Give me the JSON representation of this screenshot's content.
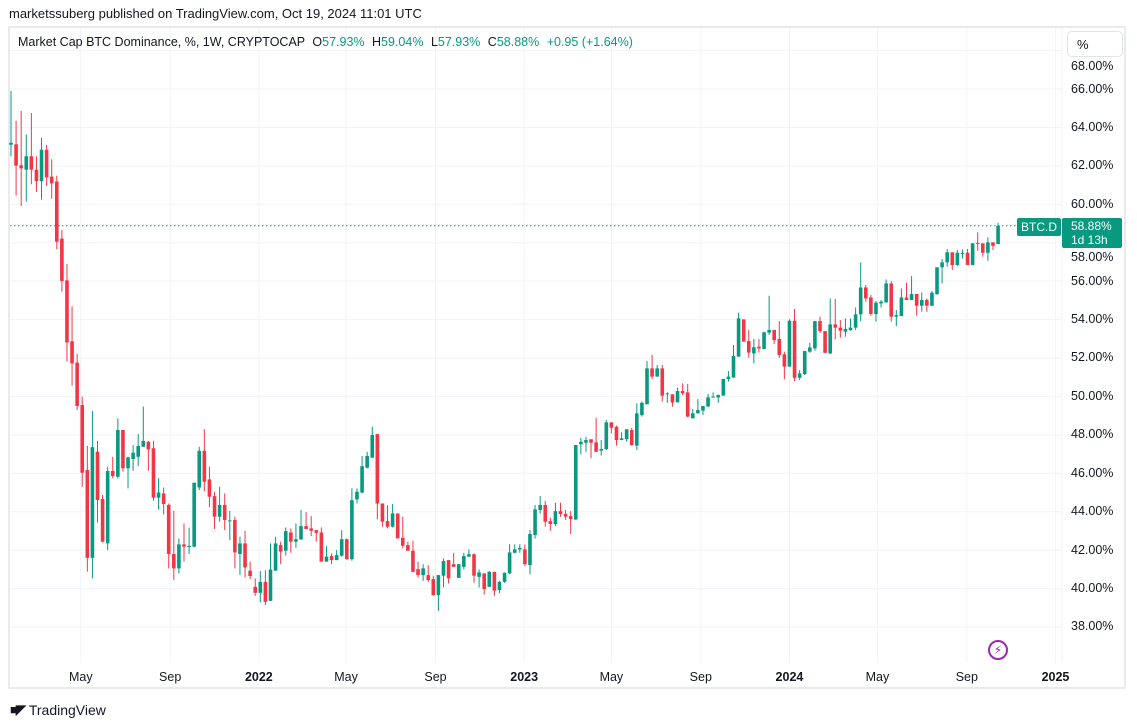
{
  "publisher": "marketssuberg published on TradingView.com, Oct 19, 2024 11:01 UTC",
  "legend": {
    "title": "Market Cap BTC Dominance, %, 1W, CRYPTOCAP",
    "o_key": "O",
    "o": "57.93%",
    "h_key": "H",
    "h": "59.04%",
    "l_key": "L",
    "l": "57.93%",
    "c_key": "C",
    "c": "58.88%",
    "change": "+0.95 (+1.64%)"
  },
  "scale_button": "%",
  "price_label": {
    "symbol": "BTC.D",
    "value": "58.88%",
    "countdown": "1d 13h"
  },
  "footer": {
    "logo_text": "TradingView",
    "logo_mark": "17"
  },
  "colors": {
    "up": "#089981",
    "down": "#f23645",
    "grid": "#f0f3fa",
    "alert_icon": "#9c27b0"
  },
  "icons": {
    "alert": "lightning-icon"
  },
  "chart_data": {
    "type": "candlestick",
    "interval": "1W",
    "first_week": "2021-01-25",
    "ylim": [
      36.9,
      67.5
    ],
    "y_ticks": [
      "68.00%",
      "66.00%",
      "64.00%",
      "62.00%",
      "60.00%",
      "58.00%",
      "56.00%",
      "54.00%",
      "52.00%",
      "50.00%",
      "48.00%",
      "46.00%",
      "44.00%",
      "42.00%",
      "40.00%",
      "38.00%"
    ],
    "y_tick_values": [
      68,
      66,
      64,
      62,
      60,
      58,
      56,
      54,
      52,
      50,
      48,
      46,
      44,
      42,
      40,
      38
    ],
    "x_ticks": [
      {
        "label": "May",
        "date": "2021-05-01",
        "year": false
      },
      {
        "label": "Sep",
        "date": "2021-09-01",
        "year": false
      },
      {
        "label": "2022",
        "date": "2022-01-01",
        "year": true
      },
      {
        "label": "May",
        "date": "2022-05-01",
        "year": false
      },
      {
        "label": "Sep",
        "date": "2022-09-01",
        "year": false
      },
      {
        "label": "2023",
        "date": "2023-01-01",
        "year": true
      },
      {
        "label": "May",
        "date": "2023-05-01",
        "year": false
      },
      {
        "label": "Sep",
        "date": "2023-09-01",
        "year": false
      },
      {
        "label": "2024",
        "date": "2024-01-01",
        "year": true
      },
      {
        "label": "May",
        "date": "2024-05-01",
        "year": false
      },
      {
        "label": "Sep",
        "date": "2024-09-01",
        "year": false
      },
      {
        "label": "2025",
        "date": "2025-01-01",
        "year": true
      }
    ],
    "last_price": 58.88,
    "grid": true,
    "ohlc": [
      [
        63.1,
        65.9,
        62.5,
        63.2
      ],
      [
        63.12,
        64.35,
        60.45,
        62.01
      ],
      [
        62.03,
        64.86,
        59.91,
        61.87
      ],
      [
        61.8,
        63.64,
        60.14,
        62.5
      ],
      [
        62.5,
        64.75,
        61.04,
        61.8
      ],
      [
        61.8,
        62.5,
        60.64,
        61.2
      ],
      [
        61.2,
        63.45,
        60.24,
        62.84
      ],
      [
        62.84,
        63.09,
        60.95,
        61.4
      ],
      [
        61.44,
        62.34,
        60.29,
        61.09
      ],
      [
        61.18,
        61.49,
        57.67,
        58.05
      ],
      [
        58.21,
        58.66,
        55.45,
        56.01
      ],
      [
        56.04,
        56.89,
        51.81,
        52.81
      ],
      [
        52.87,
        54.69,
        50.56,
        51.72
      ],
      [
        51.76,
        52.21,
        49.29,
        49.5
      ],
      [
        49.55,
        49.99,
        45.3,
        46.03
      ],
      [
        46.17,
        47.43,
        40.88,
        41.6
      ],
      [
        41.6,
        49.24,
        40.53,
        47.36
      ],
      [
        47.12,
        47.69,
        43.44,
        44.61
      ],
      [
        44.66,
        44.87,
        42.4,
        42.44
      ],
      [
        42.35,
        46.34,
        42.0,
        46.12
      ],
      [
        46.12,
        46.86,
        45.73,
        45.86
      ],
      [
        45.82,
        48.86,
        45.73,
        48.25
      ],
      [
        48.25,
        48.25,
        46.08,
        46.26
      ],
      [
        46.26,
        46.86,
        45.21,
        46.83
      ],
      [
        46.74,
        47.47,
        46.13,
        47.07
      ],
      [
        46.86,
        48.04,
        46.38,
        47.42
      ],
      [
        47.38,
        49.47,
        47.38,
        47.68
      ],
      [
        47.64,
        47.69,
        46.13,
        47.24
      ],
      [
        47.3,
        47.69,
        44.57,
        44.73
      ],
      [
        44.73,
        45.74,
        44.12,
        45.0
      ],
      [
        44.95,
        45.26,
        43.86,
        44.4
      ],
      [
        44.35,
        44.43,
        41.05,
        41.8
      ],
      [
        41.8,
        44.05,
        40.44,
        41.05
      ],
      [
        41.05,
        42.61,
        40.79,
        42.3
      ],
      [
        42.3,
        43.39,
        41.4,
        42.18
      ],
      [
        42.2,
        43.17,
        41.8,
        42.22
      ],
      [
        42.18,
        45.51,
        42.14,
        45.51
      ],
      [
        45.26,
        47.38,
        45.13,
        47.17
      ],
      [
        47.17,
        48.3,
        45.07,
        45.56
      ],
      [
        45.68,
        46.34,
        44.23,
        44.78
      ],
      [
        44.81,
        45.04,
        43.1,
        43.74
      ],
      [
        43.74,
        45.3,
        43.48,
        44.35
      ],
      [
        44.35,
        44.95,
        43.04,
        43.57
      ],
      [
        43.5,
        44.05,
        42.52,
        43.55
      ],
      [
        43.57,
        43.74,
        41.05,
        41.88
      ],
      [
        41.8,
        42.7,
        40.7,
        42.35
      ],
      [
        42.35,
        43.01,
        40.58,
        41.1
      ],
      [
        40.93,
        41.4,
        40.49,
        40.65
      ],
      [
        40.09,
        40.53,
        39.62,
        39.78
      ],
      [
        39.78,
        40.91,
        39.28,
        40.35
      ],
      [
        40.35,
        40.96,
        39.14,
        39.31
      ],
      [
        39.36,
        42.35,
        39.36,
        40.99
      ],
      [
        40.93,
        42.7,
        40.93,
        42.35
      ],
      [
        42.26,
        42.44,
        41.27,
        41.92
      ],
      [
        41.97,
        43.18,
        41.71,
        42.99
      ],
      [
        42.92,
        43.13,
        41.86,
        42.44
      ],
      [
        42.44,
        43.39,
        42.12,
        42.57
      ],
      [
        42.56,
        44.08,
        42.52,
        43.25
      ],
      [
        43.25,
        43.98,
        43.1,
        43.1
      ],
      [
        43.13,
        43.77,
        42.73,
        43.01
      ],
      [
        43.04,
        43.04,
        42.44,
        42.9
      ],
      [
        42.92,
        43.18,
        41.4,
        41.4
      ],
      [
        41.4,
        42.21,
        41.4,
        41.66
      ],
      [
        41.69,
        41.83,
        41.27,
        41.48
      ],
      [
        41.48,
        42.0,
        41.48,
        41.74
      ],
      [
        41.71,
        43.04,
        41.66,
        42.57
      ],
      [
        42.57,
        42.6,
        41.5,
        41.53
      ],
      [
        41.53,
        45.21,
        41.45,
        44.6
      ],
      [
        44.64,
        45.21,
        44.43,
        45.04
      ],
      [
        45.0,
        46.9,
        44.95,
        46.37
      ],
      [
        46.29,
        47.12,
        46.25,
        46.9
      ],
      [
        46.81,
        48.42,
        46.81,
        47.99
      ],
      [
        48.04,
        48.04,
        43.6,
        44.43
      ],
      [
        44.43,
        44.43,
        43.22,
        43.48
      ],
      [
        43.51,
        44.34,
        43.13,
        43.22
      ],
      [
        43.22,
        44.4,
        43.18,
        43.91
      ],
      [
        43.91,
        43.91,
        42.61,
        42.61
      ],
      [
        42.64,
        43.74,
        42.09,
        42.23
      ],
      [
        42.26,
        42.44,
        41.97,
        41.97
      ],
      [
        41.97,
        42.49,
        40.87,
        40.87
      ],
      [
        41.01,
        41.4,
        40.58,
        40.7
      ],
      [
        40.7,
        41.27,
        40.4,
        41.05
      ],
      [
        40.7,
        41.22,
        40.35,
        40.44
      ],
      [
        40.49,
        40.67,
        39.62,
        39.66
      ],
      [
        39.66,
        40.7,
        38.84,
        40.7
      ],
      [
        40.67,
        41.57,
        40.06,
        41.43
      ],
      [
        41.48,
        41.48,
        40.27,
        40.53
      ],
      [
        41.27,
        41.86,
        41.13,
        41.13
      ],
      [
        40.56,
        41.27,
        40.56,
        41.27
      ],
      [
        41.13,
        41.86,
        41.0,
        41.69
      ],
      [
        41.66,
        42.04,
        41.66,
        41.79
      ],
      [
        41.79,
        41.83,
        40.3,
        40.67
      ],
      [
        40.61,
        41.0,
        40.06,
        40.84
      ],
      [
        40.79,
        40.79,
        39.69,
        39.97
      ],
      [
        40.09,
        40.91,
        40.09,
        40.87
      ],
      [
        40.87,
        40.87,
        39.62,
        39.89
      ],
      [
        39.92,
        40.41,
        39.75,
        40.35
      ],
      [
        40.35,
        40.84,
        40.3,
        40.82
      ],
      [
        40.79,
        42.31,
        40.76,
        41.88
      ],
      [
        41.86,
        42.3,
        41.86,
        42.04
      ],
      [
        42.04,
        42.31,
        41.86,
        42.12
      ],
      [
        42.04,
        42.3,
        41.17,
        41.27
      ],
      [
        41.22,
        43.04,
        40.74,
        42.84
      ],
      [
        42.79,
        44.35,
        42.6,
        44.12
      ],
      [
        44.09,
        44.82,
        43.9,
        44.35
      ],
      [
        44.35,
        44.57,
        43.22,
        43.48
      ],
      [
        43.51,
        43.69,
        43.01,
        43.36
      ],
      [
        43.36,
        44.47,
        43.25,
        44.03
      ],
      [
        44.03,
        44.47,
        43.74,
        43.88
      ],
      [
        43.88,
        44.09,
        43.57,
        43.74
      ],
      [
        43.77,
        44.03,
        42.84,
        43.62
      ],
      [
        43.6,
        47.47,
        43.56,
        47.47
      ],
      [
        47.51,
        47.85,
        46.98,
        47.64
      ],
      [
        47.59,
        47.9,
        47.12,
        47.73
      ],
      [
        47.77,
        47.77,
        46.78,
        47.59
      ],
      [
        47.61,
        48.89,
        47.12,
        47.12
      ],
      [
        47.18,
        47.73,
        46.92,
        47.26
      ],
      [
        47.26,
        48.77,
        47.21,
        48.65
      ],
      [
        48.65,
        48.65,
        48.08,
        48.37
      ],
      [
        48.42,
        48.48,
        47.44,
        47.73
      ],
      [
        47.73,
        48.13,
        47.73,
        47.82
      ],
      [
        47.78,
        48.29,
        47.64,
        48.29
      ],
      [
        48.25,
        48.37,
        47.44,
        47.47
      ],
      [
        47.44,
        49.64,
        47.21,
        49.12
      ],
      [
        49.03,
        49.73,
        48.95,
        49.67
      ],
      [
        49.59,
        51.84,
        49.59,
        51.46
      ],
      [
        51.46,
        52.16,
        50.91,
        51.03
      ],
      [
        51.03,
        51.64,
        51.03,
        51.46
      ],
      [
        51.46,
        51.64,
        49.73,
        50.04
      ],
      [
        50.11,
        50.21,
        49.67,
        50.16
      ],
      [
        50.11,
        50.11,
        49.47,
        49.69
      ],
      [
        49.69,
        50.46,
        49.69,
        50.28
      ],
      [
        50.28,
        50.68,
        50.07,
        50.16
      ],
      [
        50.21,
        50.65,
        48.91,
        48.95
      ],
      [
        48.86,
        49.34,
        48.86,
        49.12
      ],
      [
        49.12,
        49.86,
        49.12,
        49.29
      ],
      [
        49.26,
        49.5,
        49.03,
        49.5
      ],
      [
        49.47,
        50.13,
        49.47,
        49.95
      ],
      [
        49.95,
        50.21,
        49.95,
        49.99
      ],
      [
        49.95,
        50.1,
        49.67,
        50.07
      ],
      [
        50.04,
        50.91,
        50.04,
        50.91
      ],
      [
        50.91,
        51.32,
        50.77,
        51.03
      ],
      [
        50.98,
        52.68,
        50.98,
        52.1
      ],
      [
        52.07,
        54.36,
        52.07,
        54.06
      ],
      [
        54.01,
        54.01,
        52.85,
        52.85
      ],
      [
        52.88,
        53.46,
        52.02,
        52.28
      ],
      [
        52.24,
        52.99,
        51.72,
        52.56
      ],
      [
        52.59,
        52.99,
        52.28,
        52.5
      ],
      [
        52.47,
        53.37,
        52.47,
        53.34
      ],
      [
        53.32,
        55.24,
        53.2,
        53.46
      ],
      [
        53.46,
        53.46,
        52.73,
        52.93
      ],
      [
        52.99,
        53.92,
        52.01,
        52.15
      ],
      [
        52.19,
        52.33,
        50.9,
        51.55
      ],
      [
        51.55,
        54.01,
        51.55,
        53.94
      ],
      [
        53.94,
        54.55,
        50.8,
        50.97
      ],
      [
        50.97,
        51.37,
        50.85,
        51.2
      ],
      [
        51.16,
        52.36,
        51.11,
        52.36
      ],
      [
        52.33,
        52.79,
        52.27,
        52.55
      ],
      [
        52.5,
        53.92,
        52.38,
        53.92
      ],
      [
        53.92,
        54.15,
        53.31,
        53.4
      ],
      [
        53.4,
        53.4,
        52.27,
        52.27
      ],
      [
        52.24,
        55.1,
        52.2,
        53.75
      ],
      [
        53.75,
        55.07,
        52.97,
        53.58
      ],
      [
        53.58,
        53.97,
        53.05,
        53.42
      ],
      [
        53.37,
        54.06,
        53.11,
        53.51
      ],
      [
        53.45,
        54.06,
        53.42,
        53.58
      ],
      [
        53.58,
        54.63,
        53.45,
        54.27
      ],
      [
        54.27,
        56.98,
        53.92,
        55.67
      ],
      [
        55.67,
        55.8,
        54.93,
        55.1
      ],
      [
        55.15,
        55.28,
        54.2,
        54.29
      ],
      [
        54.29,
        54.96,
        53.89,
        54.88
      ],
      [
        54.84,
        55.02,
        54.63,
        54.93
      ],
      [
        54.89,
        56.09,
        54.89,
        55.88
      ],
      [
        55.88,
        56.0,
        53.89,
        54.15
      ],
      [
        54.15,
        54.5,
        53.66,
        54.23
      ],
      [
        54.18,
        55.62,
        54.18,
        55.15
      ],
      [
        55.15,
        55.92,
        55.02,
        55.02
      ],
      [
        55.02,
        56.26,
        55.02,
        55.33
      ],
      [
        55.33,
        55.33,
        54.2,
        54.72
      ],
      [
        54.72,
        55.41,
        54.41,
        55.02
      ],
      [
        55.02,
        55.1,
        54.41,
        54.72
      ],
      [
        54.72,
        55.48,
        54.72,
        55.4
      ],
      [
        55.33,
        56.72,
        55.28,
        56.72
      ],
      [
        56.72,
        57.15,
        55.88,
        56.98
      ],
      [
        56.98,
        57.67,
        56.75,
        57.5
      ],
      [
        57.5,
        57.5,
        56.58,
        56.84
      ],
      [
        56.84,
        57.62,
        56.8,
        57.48
      ],
      [
        57.44,
        57.65,
        57.18,
        57.46
      ],
      [
        57.48,
        57.67,
        56.84,
        56.84
      ],
      [
        56.84,
        57.97,
        56.84,
        57.97
      ],
      [
        57.99,
        58.54,
        57.58,
        57.96
      ],
      [
        57.97,
        57.97,
        57.27,
        57.48
      ],
      [
        57.48,
        58.28,
        57.06,
        58.02
      ],
      [
        58.02,
        58.02,
        57.62,
        57.84
      ],
      [
        57.93,
        59.04,
        57.93,
        58.88
      ]
    ]
  }
}
